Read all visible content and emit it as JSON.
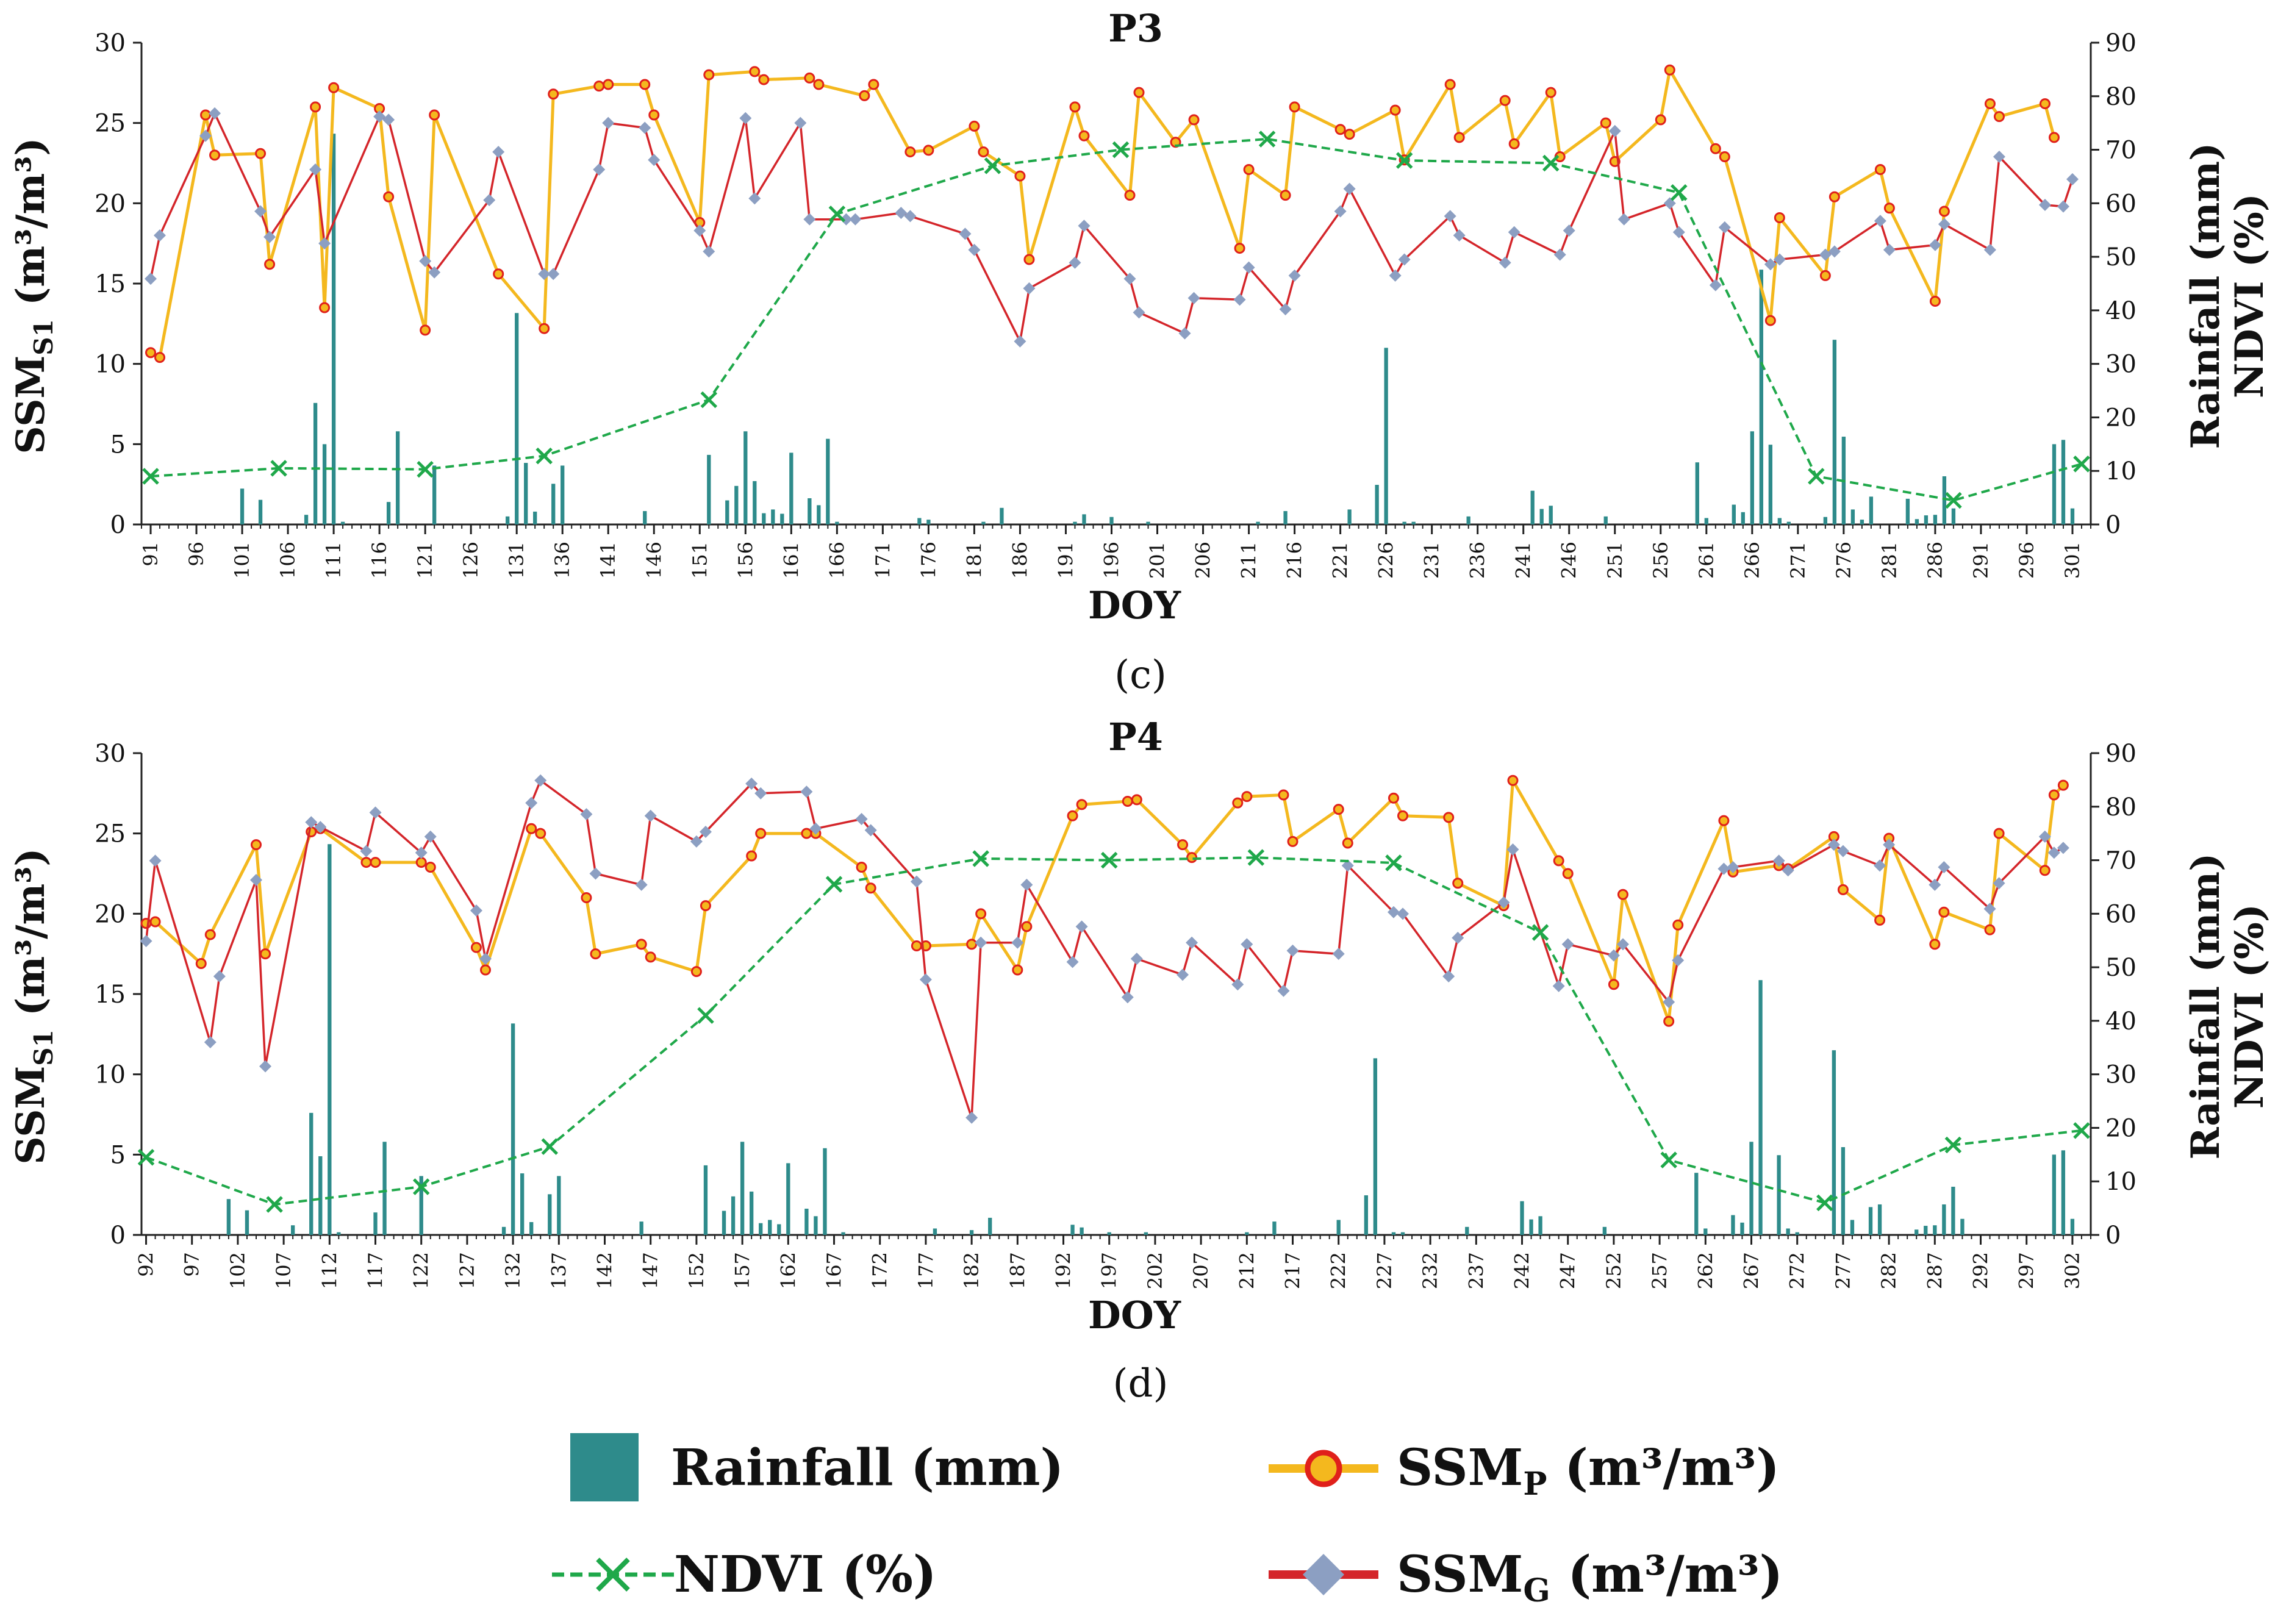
{
  "colors": {
    "rainfall": "#2E8B8B",
    "ssm_p_line": "#F4B81E",
    "ssm_p_marker_fill": "#F4B81E",
    "ssm_p_marker_edge": "#E0201B",
    "ssm_g_line": "#D4252A",
    "ssm_g_marker": "#8C9FC2",
    "ndvi": "#1FA84A",
    "axis": "#222222"
  },
  "labels": {
    "y_left_main": "SSM",
    "y_left_sub": "S1",
    "y_left_unit": " (m³/m³)",
    "y_right_outer": "NDVI (%)",
    "y_right_inner": "Rainfall (mm)",
    "x": "DOY"
  },
  "legend": {
    "rainfall": "Rainfall (mm)",
    "ndvi": "NDVI (%)",
    "ssm_p_main": "SSM",
    "ssm_p_sub": "P",
    "ssm_p_unit": " (m³/m³)",
    "ssm_g_main": "SSM",
    "ssm_g_sub": "G",
    "ssm_g_unit": " (m³/m³)"
  },
  "chart_data": [
    {
      "type": "line",
      "title": "P3",
      "caption": "(c)",
      "xlabel": "DOY",
      "ylabel": "SSM_S1 (m³/m³)",
      "y2label": "Rainfall (mm) / NDVI (%)",
      "xlim": [
        90,
        303
      ],
      "ylim": [
        0,
        30
      ],
      "y2lim": [
        0,
        90
      ],
      "x_ticks": [
        91,
        96,
        101,
        106,
        111,
        116,
        121,
        126,
        131,
        136,
        141,
        146,
        151,
        156,
        161,
        166,
        171,
        176,
        181,
        186,
        191,
        196,
        201,
        206,
        211,
        216,
        221,
        226,
        231,
        236,
        241,
        246,
        251,
        256,
        261,
        266,
        271,
        276,
        281,
        286,
        291,
        296,
        301
      ],
      "y_ticks": [
        0,
        5,
        10,
        15,
        20,
        25,
        30
      ],
      "y2_ticks": [
        0,
        10,
        20,
        30,
        40,
        50,
        60,
        70,
        80,
        90
      ],
      "rainfall": {
        "axis": "y2",
        "x": [
          101,
          103,
          108,
          109,
          110,
          111,
          112,
          117,
          118,
          122,
          130,
          131,
          132,
          133,
          135,
          136,
          145,
          152,
          154,
          155,
          156,
          157,
          158,
          159,
          160,
          161,
          163,
          164,
          165,
          166,
          175,
          176,
          182,
          184,
          192,
          193,
          196,
          200,
          212,
          215,
          222,
          225,
          226,
          228,
          229,
          235,
          242,
          243,
          244,
          250,
          260,
          261,
          264,
          265,
          266,
          267,
          268,
          269,
          270,
          274,
          275,
          276,
          277,
          278,
          279,
          283,
          284,
          285,
          286,
          287,
          288,
          299,
          300,
          301
        ],
        "values": [
          6.7,
          4.6,
          1.8,
          22.7,
          15,
          73,
          0.5,
          4.2,
          17.4,
          11,
          1.5,
          39.5,
          11.5,
          2.4,
          7.6,
          11,
          2.5,
          13,
          4.5,
          7.2,
          17.4,
          8.1,
          2.1,
          2.8,
          2,
          13.4,
          4.9,
          3.6,
          16,
          0.5,
          1.2,
          0.9,
          0.5,
          3.1,
          0.5,
          1.9,
          1.4,
          0.5,
          0.5,
          2.5,
          2.8,
          7.4,
          33,
          0.5,
          0.5,
          1.5,
          6.3,
          2.9,
          3.5,
          1.5,
          11.6,
          1.2,
          3.7,
          2.3,
          17.4,
          47.6,
          14.9,
          1.2,
          0.5,
          1.4,
          34.5,
          16.4,
          2.8,
          0.9,
          5.2,
          4.8,
          1,
          1.7,
          1.8,
          9,
          3,
          15,
          15.8,
          3
        ]
      },
      "series": [
        {
          "name": "SSM_P (m³/m³)",
          "axis": "y",
          "x": [
            91,
            92,
            97,
            98,
            103,
            104,
            109,
            110,
            111,
            116,
            117,
            121,
            122,
            129,
            134,
            135,
            140,
            141,
            145,
            146,
            151,
            152,
            157,
            158,
            163,
            164,
            169,
            170,
            174,
            176,
            181,
            182,
            186,
            187,
            192,
            193,
            198,
            199,
            203,
            205,
            210,
            211,
            215,
            216,
            221,
            222,
            227,
            228,
            233,
            234,
            239,
            240,
            244,
            245,
            250,
            251,
            256,
            257,
            262,
            263,
            268,
            269,
            274,
            275,
            280,
            281,
            286,
            287,
            292,
            293,
            298,
            299
          ],
          "values": [
            10.7,
            10.4,
            25.5,
            23,
            23.1,
            16.2,
            26,
            13.5,
            27.2,
            25.9,
            20.4,
            12.1,
            25.5,
            15.6,
            12.2,
            26.8,
            27.3,
            27.4,
            27.4,
            25.5,
            18.8,
            28,
            28.2,
            27.7,
            27.8,
            27.4,
            26.7,
            27.4,
            23.2,
            23.3,
            24.8,
            23.2,
            21.7,
            16.5,
            26,
            24.2,
            20.5,
            26.9,
            23.8,
            25.2,
            17.2,
            22.1,
            20.5,
            26,
            24.6,
            24.3,
            25.8,
            22.7,
            27.4,
            24.1,
            26.4,
            23.7,
            26.9,
            22.9,
            25,
            22.6,
            25.2,
            28.3,
            23.4,
            22.9,
            12.7,
            19.1,
            15.5,
            20.4,
            22.1,
            19.7,
            13.9,
            19.5,
            26.2,
            25.4,
            26.2,
            24.1
          ]
        },
        {
          "name": "SSM_G (m³/m³)",
          "axis": "y",
          "x": [
            91,
            92,
            97,
            98,
            103,
            104,
            109,
            110,
            116,
            117,
            121,
            122,
            128,
            129,
            134,
            135,
            140,
            141,
            145,
            146,
            151,
            152,
            156,
            157,
            162,
            163,
            167,
            168,
            173,
            174,
            180,
            181,
            186,
            187,
            192,
            193,
            198,
            199,
            204,
            205,
            210,
            211,
            215,
            216,
            221,
            222,
            227,
            228,
            233,
            234,
            239,
            240,
            245,
            246,
            251,
            252,
            257,
            258,
            262,
            263,
            268,
            269,
            274,
            275,
            280,
            281,
            286,
            287,
            292,
            293,
            298,
            300,
            301
          ],
          "values": [
            15.3,
            18,
            24.2,
            25.6,
            19.5,
            17.9,
            22.1,
            17.5,
            25.4,
            25.2,
            16.4,
            15.7,
            20.2,
            23.2,
            15.6,
            15.6,
            22.1,
            25,
            24.7,
            22.7,
            18.3,
            17,
            25.3,
            20.3,
            25,
            19,
            19,
            19,
            19.4,
            19.2,
            18.1,
            17.1,
            11.4,
            14.7,
            16.3,
            18.6,
            15.3,
            13.2,
            11.9,
            14.1,
            14,
            16,
            13.4,
            15.5,
            19.5,
            20.9,
            15.5,
            16.5,
            19.2,
            18,
            16.3,
            18.2,
            16.8,
            18.3,
            24.5,
            19,
            20,
            18.2,
            14.9,
            18.5,
            16.2,
            16.5,
            16.8,
            17,
            18.9,
            17.1,
            17.4,
            18.7,
            17.1,
            22.9,
            19.9,
            19.8,
            21.5
          ]
        },
        {
          "name": "NDVI (%)",
          "axis": "y2",
          "x": [
            91,
            105,
            121,
            134,
            152,
            166,
            183,
            197,
            213,
            228,
            244,
            258,
            273,
            288,
            302
          ],
          "values": [
            9,
            10.5,
            10.3,
            12.8,
            23.3,
            58,
            67,
            70,
            72,
            68,
            67.5,
            62,
            9,
            4.5,
            11.3
          ]
        }
      ]
    },
    {
      "type": "line",
      "title": "P4",
      "caption": "(d)",
      "xlabel": "DOY",
      "ylabel": "SSM_S1 (m³/m³)",
      "y2label": "Rainfall (mm) / NDVI (%)",
      "xlim": [
        91.5,
        304
      ],
      "ylim": [
        0,
        30
      ],
      "y2lim": [
        0,
        90
      ],
      "x_ticks": [
        92,
        97,
        102,
        107,
        112,
        117,
        122,
        127,
        132,
        137,
        142,
        147,
        152,
        157,
        162,
        167,
        172,
        177,
        182,
        187,
        192,
        197,
        202,
        207,
        212,
        217,
        222,
        227,
        232,
        237,
        242,
        247,
        252,
        257,
        262,
        267,
        272,
        277,
        282,
        287,
        292,
        297,
        302
      ],
      "y_ticks": [
        0,
        5,
        10,
        15,
        20,
        25,
        30
      ],
      "y2_ticks": [
        0,
        10,
        20,
        30,
        40,
        50,
        60,
        70,
        80,
        90
      ],
      "rainfall": {
        "axis": "y2",
        "x": [
          101,
          103,
          108,
          110,
          111,
          112,
          113,
          117,
          118,
          122,
          131,
          132,
          133,
          134,
          136,
          137,
          146,
          153,
          155,
          156,
          157,
          158,
          159,
          160,
          161,
          162,
          164,
          165,
          166,
          168,
          178,
          182,
          184,
          193,
          194,
          197,
          201,
          212,
          215,
          222,
          225,
          226,
          228,
          229,
          236,
          242,
          243,
          244,
          251,
          261,
          262,
          265,
          266,
          267,
          268,
          270,
          271,
          272,
          276,
          277,
          278,
          280,
          281,
          285,
          286,
          287,
          288,
          289,
          290,
          300,
          301,
          302
        ],
        "values": [
          6.7,
          4.6,
          1.8,
          22.8,
          14.7,
          73,
          0.5,
          4.2,
          17.4,
          11,
          1.5,
          39.5,
          11.5,
          2.4,
          7.6,
          11,
          2.5,
          13,
          4.5,
          7.2,
          17.4,
          8.1,
          2.2,
          2.8,
          2,
          13.4,
          4.9,
          3.5,
          16.2,
          0.5,
          1.2,
          0.9,
          3.2,
          1.9,
          1.4,
          0.5,
          0.5,
          0.5,
          2.5,
          2.8,
          7.4,
          33,
          0.5,
          0.5,
          1.5,
          6.3,
          2.9,
          3.5,
          1.5,
          11.6,
          1.2,
          3.7,
          2.3,
          17.4,
          47.6,
          14.9,
          1.2,
          0.5,
          34.5,
          16.4,
          2.8,
          5.2,
          5.7,
          1,
          1.7,
          1.8,
          5.7,
          9,
          3,
          15,
          15.8,
          3
        ]
      },
      "series": [
        {
          "name": "SSM_P (m³/m³)",
          "axis": "y",
          "x": [
            92,
            93,
            98,
            99,
            104,
            105,
            110,
            111,
            116,
            117,
            122,
            123,
            128,
            129,
            134,
            135,
            140,
            141,
            146,
            147,
            152,
            153,
            158,
            159,
            164,
            165,
            170,
            171,
            176,
            177,
            182,
            183,
            187,
            188,
            193,
            194,
            199,
            200,
            205,
            206,
            211,
            212,
            216,
            217,
            222,
            223,
            228,
            229,
            234,
            235,
            240,
            241,
            246,
            247,
            252,
            253,
            258,
            259,
            264,
            265,
            270,
            271,
            276,
            277,
            281,
            282,
            287,
            288,
            293,
            294,
            299,
            300,
            301
          ],
          "values": [
            19.4,
            19.5,
            16.9,
            18.7,
            24.3,
            17.5,
            25.1,
            25.3,
            23.2,
            23.2,
            23.2,
            22.9,
            17.9,
            16.5,
            25.3,
            25,
            21,
            17.5,
            18.1,
            17.3,
            16.4,
            20.5,
            23.6,
            25,
            25,
            25,
            22.9,
            21.6,
            18,
            18,
            18.1,
            20,
            16.5,
            19.2,
            26.1,
            26.8,
            27,
            27.1,
            24.3,
            23.5,
            26.9,
            27.3,
            27.4,
            24.5,
            26.5,
            24.4,
            27.2,
            26.1,
            26,
            21.9,
            20.5,
            28.3,
            23.3,
            22.5,
            15.6,
            21.2,
            13.3,
            19.3,
            25.8,
            22.6,
            23,
            22.8,
            24.8,
            21.5,
            19.6,
            24.7,
            18.1,
            20.1,
            19,
            25,
            22.7,
            27.4,
            28
          ]
        },
        {
          "name": "SSM_G (m³/m³)",
          "axis": "y",
          "x": [
            92,
            93,
            99,
            100,
            104,
            105,
            110,
            111,
            116,
            117,
            122,
            123,
            128,
            129,
            134,
            135,
            140,
            141,
            146,
            147,
            152,
            153,
            158,
            159,
            164,
            165,
            170,
            171,
            176,
            177,
            182,
            183,
            187,
            188,
            193,
            194,
            199,
            200,
            205,
            206,
            211,
            212,
            216,
            217,
            222,
            223,
            228,
            229,
            234,
            235,
            240,
            241,
            246,
            247,
            252,
            253,
            258,
            259,
            264,
            265,
            270,
            271,
            276,
            277,
            281,
            282,
            287,
            288,
            293,
            294,
            299,
            300,
            301
          ],
          "values": [
            18.3,
            23.3,
            12,
            16.1,
            22.1,
            10.5,
            25.7,
            25.4,
            23.9,
            26.3,
            23.8,
            24.8,
            20.2,
            17.2,
            26.9,
            28.3,
            26.2,
            22.5,
            21.8,
            26.1,
            24.5,
            25.1,
            28.1,
            27.5,
            27.6,
            25.3,
            25.9,
            25.2,
            22,
            15.9,
            7.3,
            18.2,
            18.2,
            21.8,
            17,
            19.2,
            14.8,
            17.2,
            16.2,
            18.2,
            15.6,
            18.1,
            15.2,
            17.7,
            17.5,
            23,
            20.1,
            20,
            16.1,
            18.5,
            20.7,
            24,
            15.5,
            18.1,
            17.4,
            18.1,
            14.5,
            17.1,
            22.8,
            22.9,
            23.3,
            22.7,
            24.3,
            23.9,
            23,
            24.3,
            21.8,
            22.9,
            20.3,
            21.9,
            24.8,
            23.8,
            24.1
          ]
        },
        {
          "name": "NDVI (%)",
          "axis": "y2",
          "x": [
            92,
            106,
            122,
            136,
            153,
            167,
            183,
            197,
            213,
            228,
            244,
            258,
            275,
            289,
            303
          ],
          "values": [
            14.5,
            5.7,
            9,
            16.5,
            41,
            65.5,
            70.3,
            70,
            70.5,
            69.5,
            56.5,
            14,
            6,
            16.8,
            19.5
          ]
        }
      ]
    }
  ]
}
